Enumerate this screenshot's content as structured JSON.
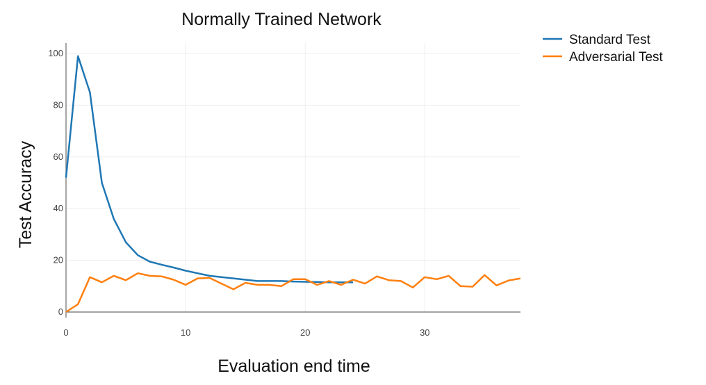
{
  "chart_data": {
    "type": "line",
    "title": "Normally Trained Network",
    "xlabel": "Evaluation end time",
    "ylabel": "Test Accuracy",
    "xlim": [
      0,
      38
    ],
    "ylim": [
      0,
      100
    ],
    "xticks": [
      0,
      10,
      20,
      30
    ],
    "yticks": [
      0,
      20,
      40,
      60,
      80,
      100
    ],
    "grid": true,
    "legend_position": "top-right-outside",
    "series": [
      {
        "name": "Standard Test",
        "color": "#1f77b4",
        "x": [
          0,
          1,
          2,
          3,
          4,
          5,
          6,
          7,
          8,
          9,
          10,
          11,
          12,
          13,
          14,
          15,
          16,
          17,
          18,
          19,
          20,
          21,
          22,
          23,
          24
        ],
        "y": [
          52,
          99,
          85,
          50,
          36,
          27,
          22,
          19.5,
          18.3,
          17.2,
          16,
          15,
          14,
          13.5,
          13,
          12.5,
          12,
          12,
          12,
          11.8,
          11.7,
          11.6,
          11.5,
          11.5,
          11.5
        ]
      },
      {
        "name": "Adversarial Test",
        "color": "#ff7f0e",
        "x": [
          0,
          1,
          2,
          3,
          4,
          5,
          6,
          7,
          8,
          9,
          10,
          11,
          12,
          13,
          14,
          15,
          16,
          17,
          18,
          19,
          20,
          21,
          22,
          23,
          24,
          25,
          26,
          27,
          28,
          29,
          30,
          31,
          32,
          33,
          34,
          35,
          36,
          37,
          38
        ],
        "y": [
          0,
          3,
          13.5,
          11.5,
          14,
          12.3,
          15,
          14,
          13.8,
          12.5,
          10.5,
          13,
          13.2,
          11,
          8.8,
          11.3,
          10.5,
          10.5,
          10,
          12.7,
          12.7,
          10.5,
          12,
          10.5,
          12.5,
          11,
          13.8,
          12.3,
          12,
          9.5,
          13.5,
          12.7,
          14,
          10,
          9.8,
          14.3,
          10.3,
          12.2,
          13
        ]
      }
    ]
  }
}
